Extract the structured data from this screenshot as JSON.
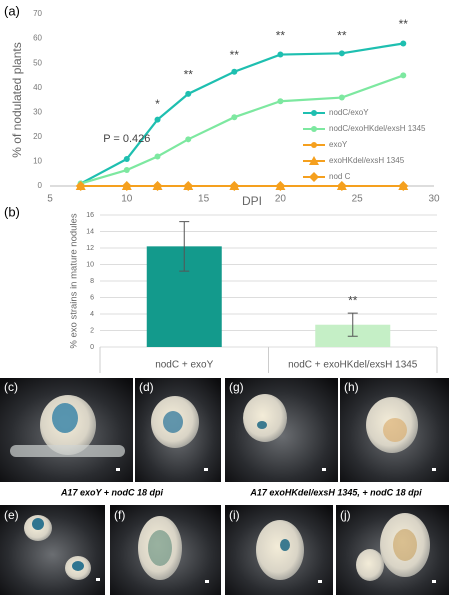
{
  "chart_data": [
    {
      "type": "line",
      "panel": "(a)",
      "xlabel": "DPI",
      "ylabel": "% of nodulated plants",
      "x": [
        7,
        10,
        12,
        14,
        17,
        20,
        24,
        28
      ],
      "xlim": [
        5,
        30
      ],
      "xticks": [
        5,
        10,
        15,
        20,
        25,
        30
      ],
      "ylim": [
        0,
        70
      ],
      "yticks": [
        0,
        10,
        20,
        30,
        40,
        50,
        60,
        70
      ],
      "series": [
        {
          "name": "nodC/exoY",
          "color": "#1ebfb0",
          "marker": "circle",
          "values": [
            1,
            11,
            27,
            37.5,
            46.5,
            53.5,
            54,
            58
          ]
        },
        {
          "name": "nodC/exoHKdel/exsH 1345",
          "color": "#7de8a0",
          "marker": "circle",
          "values": [
            1,
            6.5,
            12,
            19,
            28,
            34.5,
            36,
            45
          ]
        },
        {
          "name": "exoY",
          "color": "#f5a01e",
          "marker": "circle",
          "values": [
            0,
            0,
            0,
            0,
            0,
            0,
            0,
            0
          ]
        },
        {
          "name": "exoHKdel/exsH 1345",
          "color": "#f5a01e",
          "marker": "triangle",
          "values": [
            0,
            0,
            0,
            0,
            0,
            0,
            0,
            0
          ]
        },
        {
          "name": "nod C",
          "color": "#f5a01e",
          "marker": "diamond",
          "values": [
            0,
            0,
            0,
            0,
            0,
            0,
            0,
            0
          ]
        }
      ],
      "annotations": [
        {
          "text": "P = 0.426",
          "x": 10,
          "y": 19
        },
        {
          "text": "*",
          "x": 12,
          "y": 33
        },
        {
          "text": "**",
          "x": 14,
          "y": 45
        },
        {
          "text": "**",
          "x": 17,
          "y": 53
        },
        {
          "text": "**",
          "x": 20,
          "y": 61
        },
        {
          "text": "**",
          "x": 24,
          "y": 61
        },
        {
          "text": "**",
          "x": 28,
          "y": 65.5
        }
      ]
    },
    {
      "type": "bar",
      "panel": "(b)",
      "ylabel": "% exo strains in mature nodules",
      "categories": [
        "nodC + exoY",
        "nodC + exoHKdel/exsH 1345"
      ],
      "values": [
        12.2,
        2.7
      ],
      "errors": [
        3.0,
        1.4
      ],
      "colors": [
        "#139a8c",
        "#c5efc6"
      ],
      "ylim": [
        0,
        16
      ],
      "yticks": [
        0,
        2,
        4,
        6,
        8,
        10,
        12,
        14,
        16
      ],
      "grid": true,
      "annotations": [
        {
          "text": "**",
          "category": "nodC + exoHKdel/exsH 1345"
        }
      ]
    }
  ],
  "photos": {
    "panels": [
      "(c)",
      "(d)",
      "(g)",
      "(h)",
      "(e)",
      "(f)",
      "(i)",
      "(j)"
    ],
    "captions": [
      "A17 exoY + nodC 18 dpi",
      "A17 exoHKdel/exsH 1345,  + nodC 18 dpi"
    ]
  }
}
